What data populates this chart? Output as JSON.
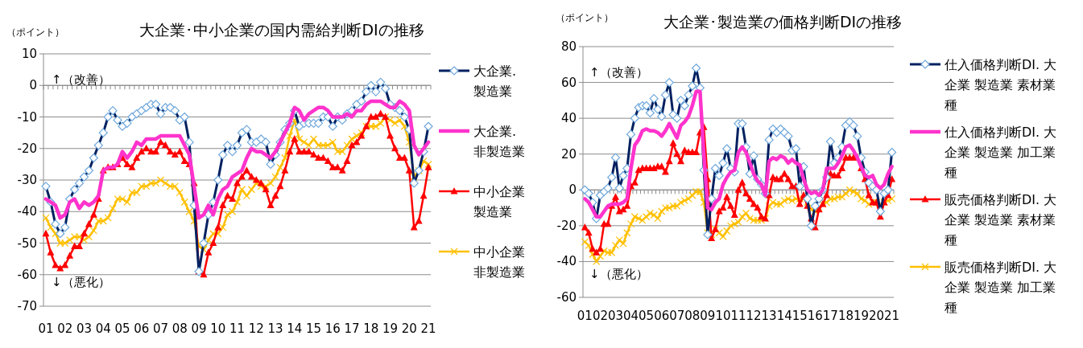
{
  "chart_data": [
    {
      "type": "line",
      "title": "大企業･中小企業の国内需給判断DIの推移",
      "ylabel": "（ポイント）",
      "annotations": [
        "↑（改善）",
        "↓（悪化）"
      ],
      "grid": "y",
      "legend": "right",
      "categories": [
        "01",
        null,
        null,
        null,
        "02",
        null,
        null,
        null,
        "03",
        null,
        null,
        null,
        "04",
        null,
        null,
        null,
        "05",
        null,
        null,
        null,
        "06",
        null,
        null,
        null,
        "07",
        null,
        null,
        null,
        "08",
        null,
        null,
        null,
        "09",
        null,
        null,
        null,
        "10",
        null,
        null,
        null,
        "11",
        null,
        null,
        null,
        "12",
        null,
        null,
        null,
        "13",
        null,
        null,
        null,
        "14",
        null,
        null,
        null,
        "15",
        null,
        null,
        null,
        "16",
        null,
        null,
        null,
        "17",
        null,
        null,
        null,
        "18",
        null,
        null,
        null,
        "19",
        null,
        null,
        null,
        "20",
        null,
        null,
        null,
        "21"
      ],
      "ylim": [
        -70,
        10
      ],
      "yticks": [
        -70,
        -60,
        -50,
        -40,
        -30,
        -20,
        -10,
        0,
        10
      ],
      "series": [
        {
          "name": "大企業.製造業",
          "color": "#002060",
          "marker": "diamond",
          "values": [
            -32,
            -37,
            -44,
            -47,
            -45,
            -36,
            -33,
            -31,
            -29,
            -27,
            -23,
            -19,
            -15,
            -10,
            -8,
            -11,
            -13,
            -12,
            -10,
            -9,
            -8,
            -7,
            -6,
            -6,
            -9,
            -7,
            -7,
            -8,
            -11,
            -10,
            -18,
            -38,
            -59,
            -50,
            -41,
            -37,
            -30,
            -22,
            -19,
            -21,
            -19,
            -15,
            -14,
            -18,
            -18,
            -17,
            -18,
            -25,
            -22,
            -18,
            -14,
            -12,
            -8,
            -13,
            -12,
            -12,
            -12,
            -12,
            -10,
            -10,
            -13,
            -10,
            -11,
            -9,
            -8,
            -6,
            -5,
            -2,
            0,
            -2,
            1,
            -1,
            -6,
            -7,
            -8,
            -10,
            -14,
            -31,
            -27,
            -21,
            -13
          ]
        },
        {
          "name": "大企業.非製造業",
          "color": "#ff33cc",
          "marker": "none",
          "values": [
            -36,
            -37,
            -38,
            -42,
            -41,
            -37,
            -36,
            -39,
            -37,
            -38,
            -37,
            -35,
            -27,
            -26,
            -26,
            -25,
            -21,
            -23,
            -21,
            -18,
            -19,
            -17,
            -17,
            -17,
            -16,
            -16,
            -16,
            -16,
            -16,
            -19,
            -22,
            -32,
            -42,
            -41,
            -38,
            -41,
            -36,
            -33,
            -32,
            -29,
            -28,
            -27,
            -23,
            -20,
            -21,
            -21,
            -22,
            -23,
            -21,
            -18,
            -15,
            -12,
            -7,
            -8,
            -11,
            -9,
            -8,
            -7,
            -7,
            -8,
            -10,
            -10,
            -10,
            -9,
            -10,
            -8,
            -8,
            -6,
            -5,
            -5,
            -5,
            -6,
            -7,
            -7,
            -5,
            -6,
            -8,
            -19,
            -22,
            -20,
            -18
          ]
        },
        {
          "name": "中小企業製造業",
          "color": "#ff0000",
          "marker": "triangle",
          "values": [
            -47,
            -53,
            -57,
            -58,
            -57,
            -54,
            -51,
            -51,
            -47,
            -44,
            -41,
            -36,
            -27,
            -26,
            -26,
            -25,
            -23,
            -25,
            -26,
            -23,
            -21,
            -20,
            -21,
            -21,
            -18,
            -19,
            -21,
            -22,
            -21,
            -24,
            -25,
            -31,
            -59,
            -60,
            -53,
            -50,
            -45,
            -38,
            -35,
            -36,
            -31,
            -29,
            -27,
            -29,
            -30,
            -31,
            -33,
            -38,
            -35,
            -32,
            -27,
            -21,
            -17,
            -21,
            -21,
            -21,
            -22,
            -23,
            -23,
            -24,
            -26,
            -26,
            -27,
            -24,
            -19,
            -18,
            -16,
            -13,
            -10,
            -10,
            -9,
            -10,
            -16,
            -20,
            -23,
            -23,
            -27,
            -45,
            -43,
            -35,
            -26
          ]
        },
        {
          "name": "中小企業非製造業",
          "color": "#ffc000",
          "marker": "cross",
          "values": [
            -42,
            -45,
            -47,
            -50,
            -50,
            -49,
            -48,
            -48,
            -49,
            -48,
            -46,
            -43,
            -43,
            -42,
            -39,
            -36,
            -36,
            -37,
            -34,
            -34,
            -32,
            -32,
            -31,
            -31,
            -30,
            -31,
            -32,
            -32,
            -34,
            -37,
            -40,
            -43,
            -51,
            -52,
            -49,
            -47,
            -47,
            -45,
            -41,
            -40,
            -37,
            -33,
            -35,
            -33,
            -31,
            -32,
            -32,
            -31,
            -29,
            -26,
            -23,
            -16,
            -11,
            -17,
            -18,
            -19,
            -17,
            -19,
            -19,
            -19,
            -18,
            -21,
            -21,
            -19,
            -17,
            -16,
            -15,
            -13,
            -13,
            -13,
            -12,
            -10,
            -11,
            -12,
            -11,
            -13,
            -18,
            -29,
            -27,
            -24,
            -25
          ]
        }
      ]
    },
    {
      "type": "line",
      "title": "大企業･製造業の価格判断DIの推移",
      "ylabel": "（ポイント）",
      "annotations": [
        "↑（改善）",
        "↓（悪化）"
      ],
      "grid": "y",
      "legend": "right",
      "categories": [
        "01",
        null,
        null,
        null,
        "02",
        null,
        null,
        null,
        "03",
        null,
        null,
        null,
        "04",
        null,
        null,
        null,
        "05",
        null,
        null,
        null,
        "06",
        null,
        null,
        null,
        "07",
        null,
        null,
        null,
        "08",
        null,
        null,
        null,
        "09",
        null,
        null,
        null,
        "10",
        null,
        null,
        null,
        "11",
        null,
        null,
        null,
        "12",
        null,
        null,
        null,
        "13",
        null,
        null,
        null,
        "14",
        null,
        null,
        null,
        "15",
        null,
        null,
        null,
        "16",
        null,
        null,
        null,
        "17",
        null,
        null,
        null,
        "18",
        null,
        null,
        null,
        "19",
        null,
        null,
        null,
        "20",
        null,
        null,
        null,
        "21"
      ],
      "ylim": [
        -60,
        80
      ],
      "yticks": [
        -60,
        -40,
        -20,
        0,
        20,
        40,
        60,
        80
      ],
      "series": [
        {
          "name": "仕入価格判断DI. 大企業 製造業 素材業種",
          "color": "#002060",
          "marker": "diamond",
          "values": [
            0,
            -2,
            -7,
            -16,
            -3,
            -1,
            1,
            7,
            18,
            1,
            8,
            12,
            31,
            40,
            46,
            47,
            47,
            43,
            51,
            45,
            41,
            53,
            60,
            42,
            40,
            50,
            47,
            53,
            58,
            68,
            57,
            11,
            -25,
            -5,
            12,
            8,
            15,
            23,
            12,
            10,
            37,
            37,
            24,
            9,
            19,
            6,
            3,
            -2,
            28,
            34,
            32,
            34,
            32,
            30,
            22,
            23,
            2,
            13,
            -5,
            -20,
            -9,
            -5,
            0,
            7,
            27,
            15,
            18,
            24,
            36,
            38,
            36,
            30,
            18,
            10,
            4,
            2,
            0,
            -12,
            -2,
            0,
            21
          ]
        },
        {
          "name": "仕入価格判断DI. 大企業 製造業 加工業種",
          "color": "#ff33cc",
          "marker": "none",
          "values": [
            -5,
            -7,
            -11,
            -15,
            -15,
            -12,
            -9,
            -8,
            -8,
            -8,
            -7,
            -5,
            12,
            25,
            28,
            33,
            34,
            33,
            33,
            32,
            30,
            33,
            37,
            33,
            29,
            36,
            38,
            41,
            47,
            55,
            55,
            20,
            -10,
            -11,
            -7,
            -5,
            3,
            7,
            10,
            11,
            21,
            24,
            21,
            15,
            9,
            5,
            3,
            -3,
            16,
            18,
            17,
            19,
            18,
            15,
            17,
            15,
            14,
            6,
            0,
            -2,
            -1,
            -3,
            0,
            12,
            12,
            12,
            15,
            19,
            24,
            25,
            22,
            18,
            13,
            8,
            7,
            8,
            3,
            1,
            3,
            9,
            13
          ]
        },
        {
          "name": "販売価格判断DI. 大企業 製造業 素材業種",
          "color": "#ff0000",
          "marker": "triangle",
          "values": [
            -21,
            -24,
            -33,
            -35,
            -33,
            -19,
            -19,
            -9,
            -4,
            -12,
            -11,
            -9,
            2,
            4,
            11,
            12,
            12,
            12,
            12,
            13,
            13,
            10,
            16,
            26,
            20,
            16,
            22,
            21,
            21,
            21,
            32,
            35,
            6,
            -27,
            -22,
            -12,
            -10,
            -4,
            -9,
            -14,
            0,
            4,
            -2,
            -5,
            -8,
            -10,
            -15,
            -16,
            -3,
            7,
            6,
            6,
            9,
            6,
            2,
            2,
            -8,
            -3,
            -9,
            -16,
            -21,
            -11,
            -8,
            -3,
            9,
            8,
            8,
            12,
            18,
            18,
            18,
            18,
            12,
            6,
            -3,
            -7,
            -7,
            -15,
            -7,
            -3,
            6
          ]
        },
        {
          "name": "販売価格判断DI. 大企業 製造業 加工業種",
          "color": "#ffc000",
          "marker": "cross",
          "values": [
            -29,
            -31,
            -36,
            -40,
            -37,
            -34,
            -35,
            -35,
            -31,
            -28,
            -30,
            -24,
            -19,
            -15,
            -16,
            -17,
            -15,
            -13,
            -14,
            -16,
            -12,
            -10,
            -10,
            -9,
            -9,
            -7,
            -6,
            -5,
            -3,
            -1,
            -1,
            -7,
            -24,
            -25,
            -22,
            -24,
            -26,
            -23,
            -20,
            -19,
            -18,
            -15,
            -13,
            -16,
            -17,
            -17,
            -17,
            -16,
            -9,
            -7,
            -8,
            -8,
            -6,
            -5,
            -6,
            -5,
            -5,
            -5,
            -7,
            -11,
            -12,
            -10,
            -8,
            -7,
            -5,
            -5,
            -4,
            -4,
            -2,
            0,
            -1,
            -2,
            -5,
            -6,
            -8,
            -7,
            -7,
            -8,
            -7,
            -6,
            -5
          ]
        }
      ]
    }
  ]
}
